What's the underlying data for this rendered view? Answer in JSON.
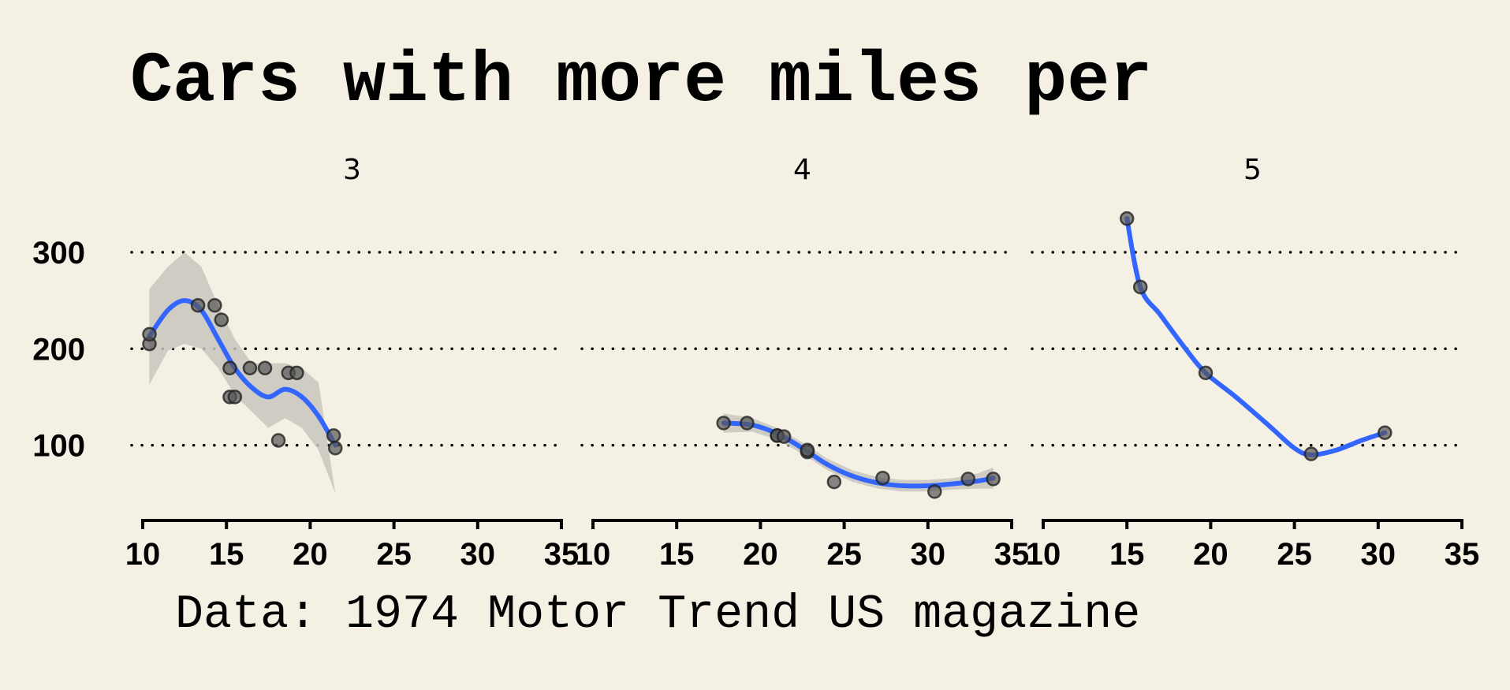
{
  "chart_data": {
    "type": "scatter",
    "title": "Cars with more miles per",
    "caption": "Data: 1974 Motor Trend US magazine",
    "xlim": [
      10,
      35
    ],
    "ylim": [
      40,
      340
    ],
    "x_ticks": [
      "10",
      "15",
      "20",
      "25",
      "30",
      "35"
    ],
    "y_ticks": [
      "100",
      "200",
      "300"
    ],
    "grid": "horizontal dotted",
    "smooth_color": "#3366ff",
    "point_color": "#555555",
    "band_color": "#c8c5be",
    "panels": [
      {
        "label": "3",
        "points": [
          [
            10.4,
            205
          ],
          [
            10.4,
            215
          ],
          [
            13.3,
            245
          ],
          [
            14.3,
            245
          ],
          [
            14.7,
            230
          ],
          [
            15.2,
            180
          ],
          [
            15.2,
            150
          ],
          [
            15.5,
            150
          ],
          [
            16.4,
            180
          ],
          [
            17.3,
            180
          ],
          [
            18.1,
            105
          ],
          [
            18.7,
            175
          ],
          [
            19.2,
            175
          ],
          [
            21.4,
            110
          ],
          [
            21.5,
            97
          ]
        ],
        "smooth": [
          [
            10.4,
            213
          ],
          [
            11.5,
            240
          ],
          [
            12.5,
            250
          ],
          [
            13.5,
            240
          ],
          [
            14.5,
            210
          ],
          [
            15.5,
            180
          ],
          [
            16.5,
            160
          ],
          [
            17.5,
            150
          ],
          [
            18.5,
            158
          ],
          [
            19.5,
            150
          ],
          [
            20.5,
            130
          ],
          [
            21.5,
            100
          ]
        ],
        "band_upper": [
          [
            10.4,
            262
          ],
          [
            11.5,
            285
          ],
          [
            12.5,
            300
          ],
          [
            13.5,
            285
          ],
          [
            14.5,
            245
          ],
          [
            15.5,
            210
          ],
          [
            16.5,
            185
          ],
          [
            17.5,
            185
          ],
          [
            18.5,
            185
          ],
          [
            19.5,
            180
          ],
          [
            20.5,
            165
          ],
          [
            21.5,
            50
          ]
        ],
        "band_lower": [
          [
            10.4,
            163
          ],
          [
            11.5,
            198
          ],
          [
            12.5,
            205
          ],
          [
            13.5,
            200
          ],
          [
            14.5,
            180
          ],
          [
            15.5,
            152
          ],
          [
            16.5,
            135
          ],
          [
            17.5,
            118
          ],
          [
            18.5,
            128
          ],
          [
            19.5,
            118
          ],
          [
            20.5,
            95
          ],
          [
            21.5,
            50
          ]
        ]
      },
      {
        "label": "4",
        "points": [
          [
            17.8,
            123
          ],
          [
            19.2,
            123
          ],
          [
            21.0,
            110
          ],
          [
            21.0,
            110
          ],
          [
            21.4,
            109
          ],
          [
            22.8,
            93
          ],
          [
            22.8,
            95
          ],
          [
            24.4,
            62
          ],
          [
            27.3,
            66
          ],
          [
            30.4,
            52
          ],
          [
            32.4,
            65
          ],
          [
            33.9,
            65
          ]
        ],
        "smooth": [
          [
            17.8,
            123
          ],
          [
            19.5,
            121
          ],
          [
            21,
            112
          ],
          [
            22.5,
            97
          ],
          [
            24,
            80
          ],
          [
            25.5,
            68
          ],
          [
            27,
            61
          ],
          [
            28.5,
            58
          ],
          [
            30,
            58
          ],
          [
            31.5,
            60
          ],
          [
            33,
            63
          ],
          [
            33.9,
            66
          ]
        ],
        "band_upper": [
          [
            17.8,
            133
          ],
          [
            19.5,
            128
          ],
          [
            21,
            118
          ],
          [
            22.5,
            103
          ],
          [
            24,
            86
          ],
          [
            25.5,
            74
          ],
          [
            27,
            67
          ],
          [
            28.5,
            64
          ],
          [
            30,
            64
          ],
          [
            31.5,
            66
          ],
          [
            33,
            71
          ],
          [
            33.9,
            77
          ]
        ],
        "band_lower": [
          [
            17.8,
            113
          ],
          [
            19.5,
            114
          ],
          [
            21,
            106
          ],
          [
            22.5,
            91
          ],
          [
            24,
            74
          ],
          [
            25.5,
            62
          ],
          [
            27,
            55
          ],
          [
            28.5,
            52
          ],
          [
            30,
            52
          ],
          [
            31.5,
            54
          ],
          [
            33,
            55
          ],
          [
            33.9,
            55
          ]
        ]
      },
      {
        "label": "5",
        "points": [
          [
            15.0,
            335
          ],
          [
            15.8,
            264
          ],
          [
            19.7,
            175
          ],
          [
            26.0,
            91
          ],
          [
            30.4,
            113
          ]
        ],
        "smooth": [
          [
            15.0,
            335
          ],
          [
            15.8,
            264
          ],
          [
            17,
            235
          ],
          [
            18.5,
            200
          ],
          [
            19.7,
            175
          ],
          [
            21.5,
            150
          ],
          [
            23.5,
            120
          ],
          [
            25,
            97
          ],
          [
            26,
            90
          ],
          [
            27.5,
            95
          ],
          [
            29,
            105
          ],
          [
            30.4,
            113
          ]
        ]
      }
    ]
  }
}
